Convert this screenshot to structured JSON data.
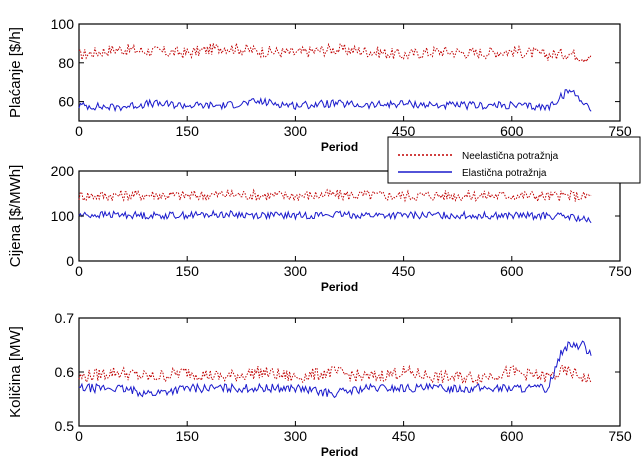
{
  "chart_data": [
    {
      "type": "line",
      "xlabel": "Period",
      "ylabel": "Plaćanje  [$/h]",
      "xlim": [
        0,
        750
      ],
      "ylim": [
        50,
        100
      ],
      "xticks": [
        "0",
        "150",
        "300",
        "450",
        "600",
        "750"
      ],
      "yticks": [
        "60",
        "80",
        "100"
      ],
      "x": [
        0,
        50,
        100,
        150,
        200,
        250,
        300,
        350,
        400,
        450,
        500,
        550,
        600,
        650,
        680,
        700,
        710
      ],
      "series": [
        {
          "key": "inelastic",
          "color": "#c00000",
          "style": "dotted",
          "values": [
            84,
            87,
            86,
            85,
            88,
            86,
            85,
            87,
            86,
            84,
            86,
            85,
            86,
            84,
            85,
            83,
            84
          ]
        },
        {
          "key": "elastic",
          "color": "#1a1acc",
          "style": "solid",
          "values": [
            58,
            57,
            59,
            58,
            58,
            60,
            58,
            59,
            58,
            59,
            58,
            58,
            58,
            57,
            66,
            60,
            55
          ]
        }
      ]
    },
    {
      "type": "line",
      "xlabel": "Period",
      "ylabel": "Cijena  [$/MWh]",
      "xlim": [
        0,
        750
      ],
      "ylim": [
        0,
        200
      ],
      "xticks": [
        "0",
        "150",
        "300",
        "450",
        "600",
        "750"
      ],
      "yticks": [
        "0",
        "100",
        "200"
      ],
      "x": [
        0,
        50,
        100,
        150,
        200,
        250,
        300,
        350,
        400,
        450,
        500,
        550,
        600,
        650,
        680,
        700,
        710
      ],
      "series": [
        {
          "key": "inelastic",
          "color": "#c00000",
          "style": "dotted",
          "values": [
            145,
            146,
            147,
            145,
            148,
            146,
            145,
            147,
            146,
            145,
            146,
            145,
            146,
            144,
            145,
            143,
            146
          ]
        },
        {
          "key": "elastic",
          "color": "#1a1acc",
          "style": "solid",
          "values": [
            102,
            103,
            101,
            102,
            104,
            102,
            101,
            103,
            102,
            101,
            102,
            101,
            101,
            100,
            98,
            92,
            85
          ]
        }
      ]
    },
    {
      "type": "line",
      "xlabel": "Period",
      "ylabel": "Količina  [MW]",
      "xlim": [
        0,
        750
      ],
      "ylim": [
        0.5,
        0.7
      ],
      "xticks": [
        "0",
        "150",
        "300",
        "450",
        "600",
        "750"
      ],
      "yticks": [
        "0.5",
        "0.6",
        "0.7"
      ],
      "x": [
        0,
        50,
        100,
        150,
        200,
        250,
        300,
        350,
        400,
        450,
        500,
        550,
        600,
        650,
        670,
        680,
        700,
        710
      ],
      "series": [
        {
          "key": "inelastic",
          "color": "#c00000",
          "style": "dotted",
          "values": [
            0.59,
            0.6,
            0.59,
            0.6,
            0.59,
            0.6,
            0.59,
            0.6,
            0.59,
            0.6,
            0.59,
            0.59,
            0.6,
            0.59,
            0.6,
            0.6,
            0.59,
            0.58
          ]
        },
        {
          "key": "elastic",
          "color": "#1a1acc",
          "style": "solid",
          "values": [
            0.57,
            0.57,
            0.56,
            0.57,
            0.57,
            0.57,
            0.57,
            0.56,
            0.57,
            0.57,
            0.57,
            0.57,
            0.57,
            0.57,
            0.64,
            0.65,
            0.65,
            0.63
          ]
        }
      ]
    }
  ],
  "legend": {
    "items": [
      {
        "label": "Neelastična potražnja",
        "color": "#c00000",
        "style": "dotted"
      },
      {
        "label": "Elastična potražnja",
        "color": "#1a1acc",
        "style": "solid"
      }
    ],
    "placement": "right, between top and middle panels"
  }
}
